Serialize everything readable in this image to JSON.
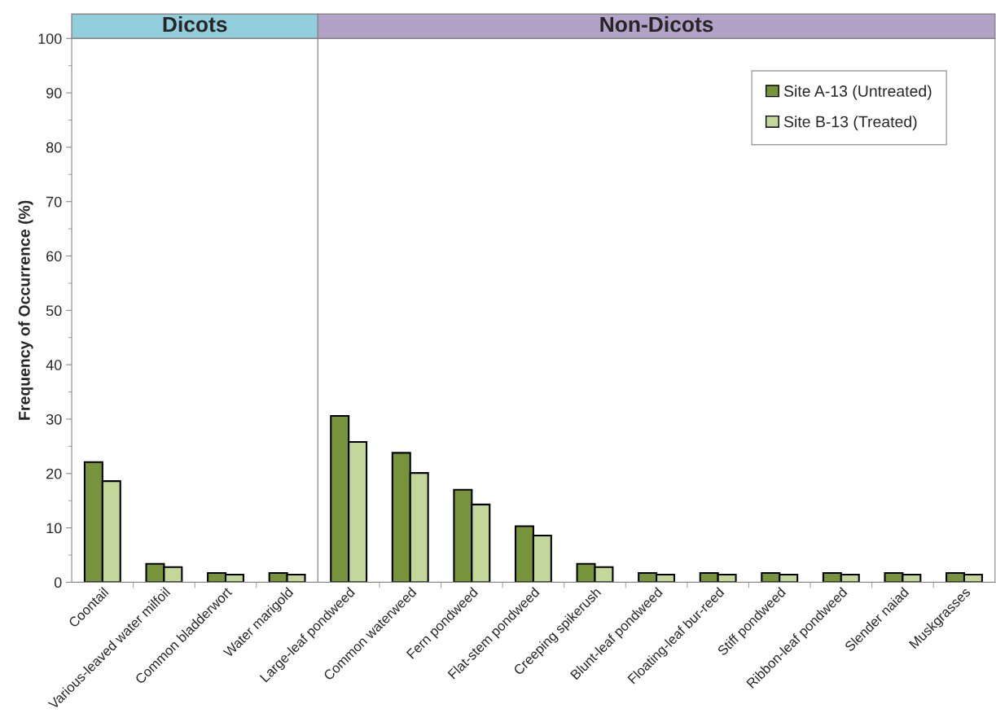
{
  "chart_data": [
    {
      "type": "bar",
      "title": "Dicots",
      "ylabel": "Frequency of Occurrence (%)",
      "categories": [
        "Coontail",
        "Various-leaved water milfoil",
        "Common bladderwort",
        "Water marigold"
      ],
      "series": [
        {
          "color": "#77933c",
          "values": [
            22.1,
            3.4,
            1.7,
            1.7
          ]
        },
        {
          "color": "#c4d79b",
          "values": [
            18.6,
            2.8,
            1.4,
            1.4
          ]
        }
      ],
      "ylim": [
        0,
        100
      ],
      "yticks": [
        0,
        10,
        20,
        30,
        40,
        50,
        60,
        70,
        80,
        90,
        100
      ]
    },
    {
      "type": "bar",
      "title": "Non-Dicots",
      "categories": [
        "Large-leaf pondweed",
        "Common waterweed",
        "Fern pondweed",
        "Flat-stem pondweed",
        "Creeping spikerush",
        "Blunt-leaf pondweed",
        "Floating-leaf bur-reed",
        "Stiff pondweed",
        "Ribbon-leaf pondweed",
        "Slender naiad",
        "Muskgrasses"
      ],
      "series": [
        {
          "name": "Site A-13 (Untreated)",
          "color": "#77933c",
          "values": [
            30.6,
            23.8,
            17.0,
            10.3,
            3.4,
            1.7,
            1.7,
            1.7,
            1.7,
            1.7,
            1.7
          ]
        },
        {
          "name": "Site B-13 (Treated)",
          "color": "#c4d79b",
          "values": [
            25.8,
            20.1,
            14.3,
            8.6,
            2.8,
            1.4,
            1.4,
            1.4,
            1.4,
            1.4,
            1.4
          ]
        }
      ],
      "ylim": [
        0,
        100
      ],
      "yticks": [
        0,
        10,
        20,
        30,
        40,
        50,
        60,
        70,
        80,
        90,
        100
      ],
      "tick_labels": "x",
      "legend": "top right"
    }
  ]
}
